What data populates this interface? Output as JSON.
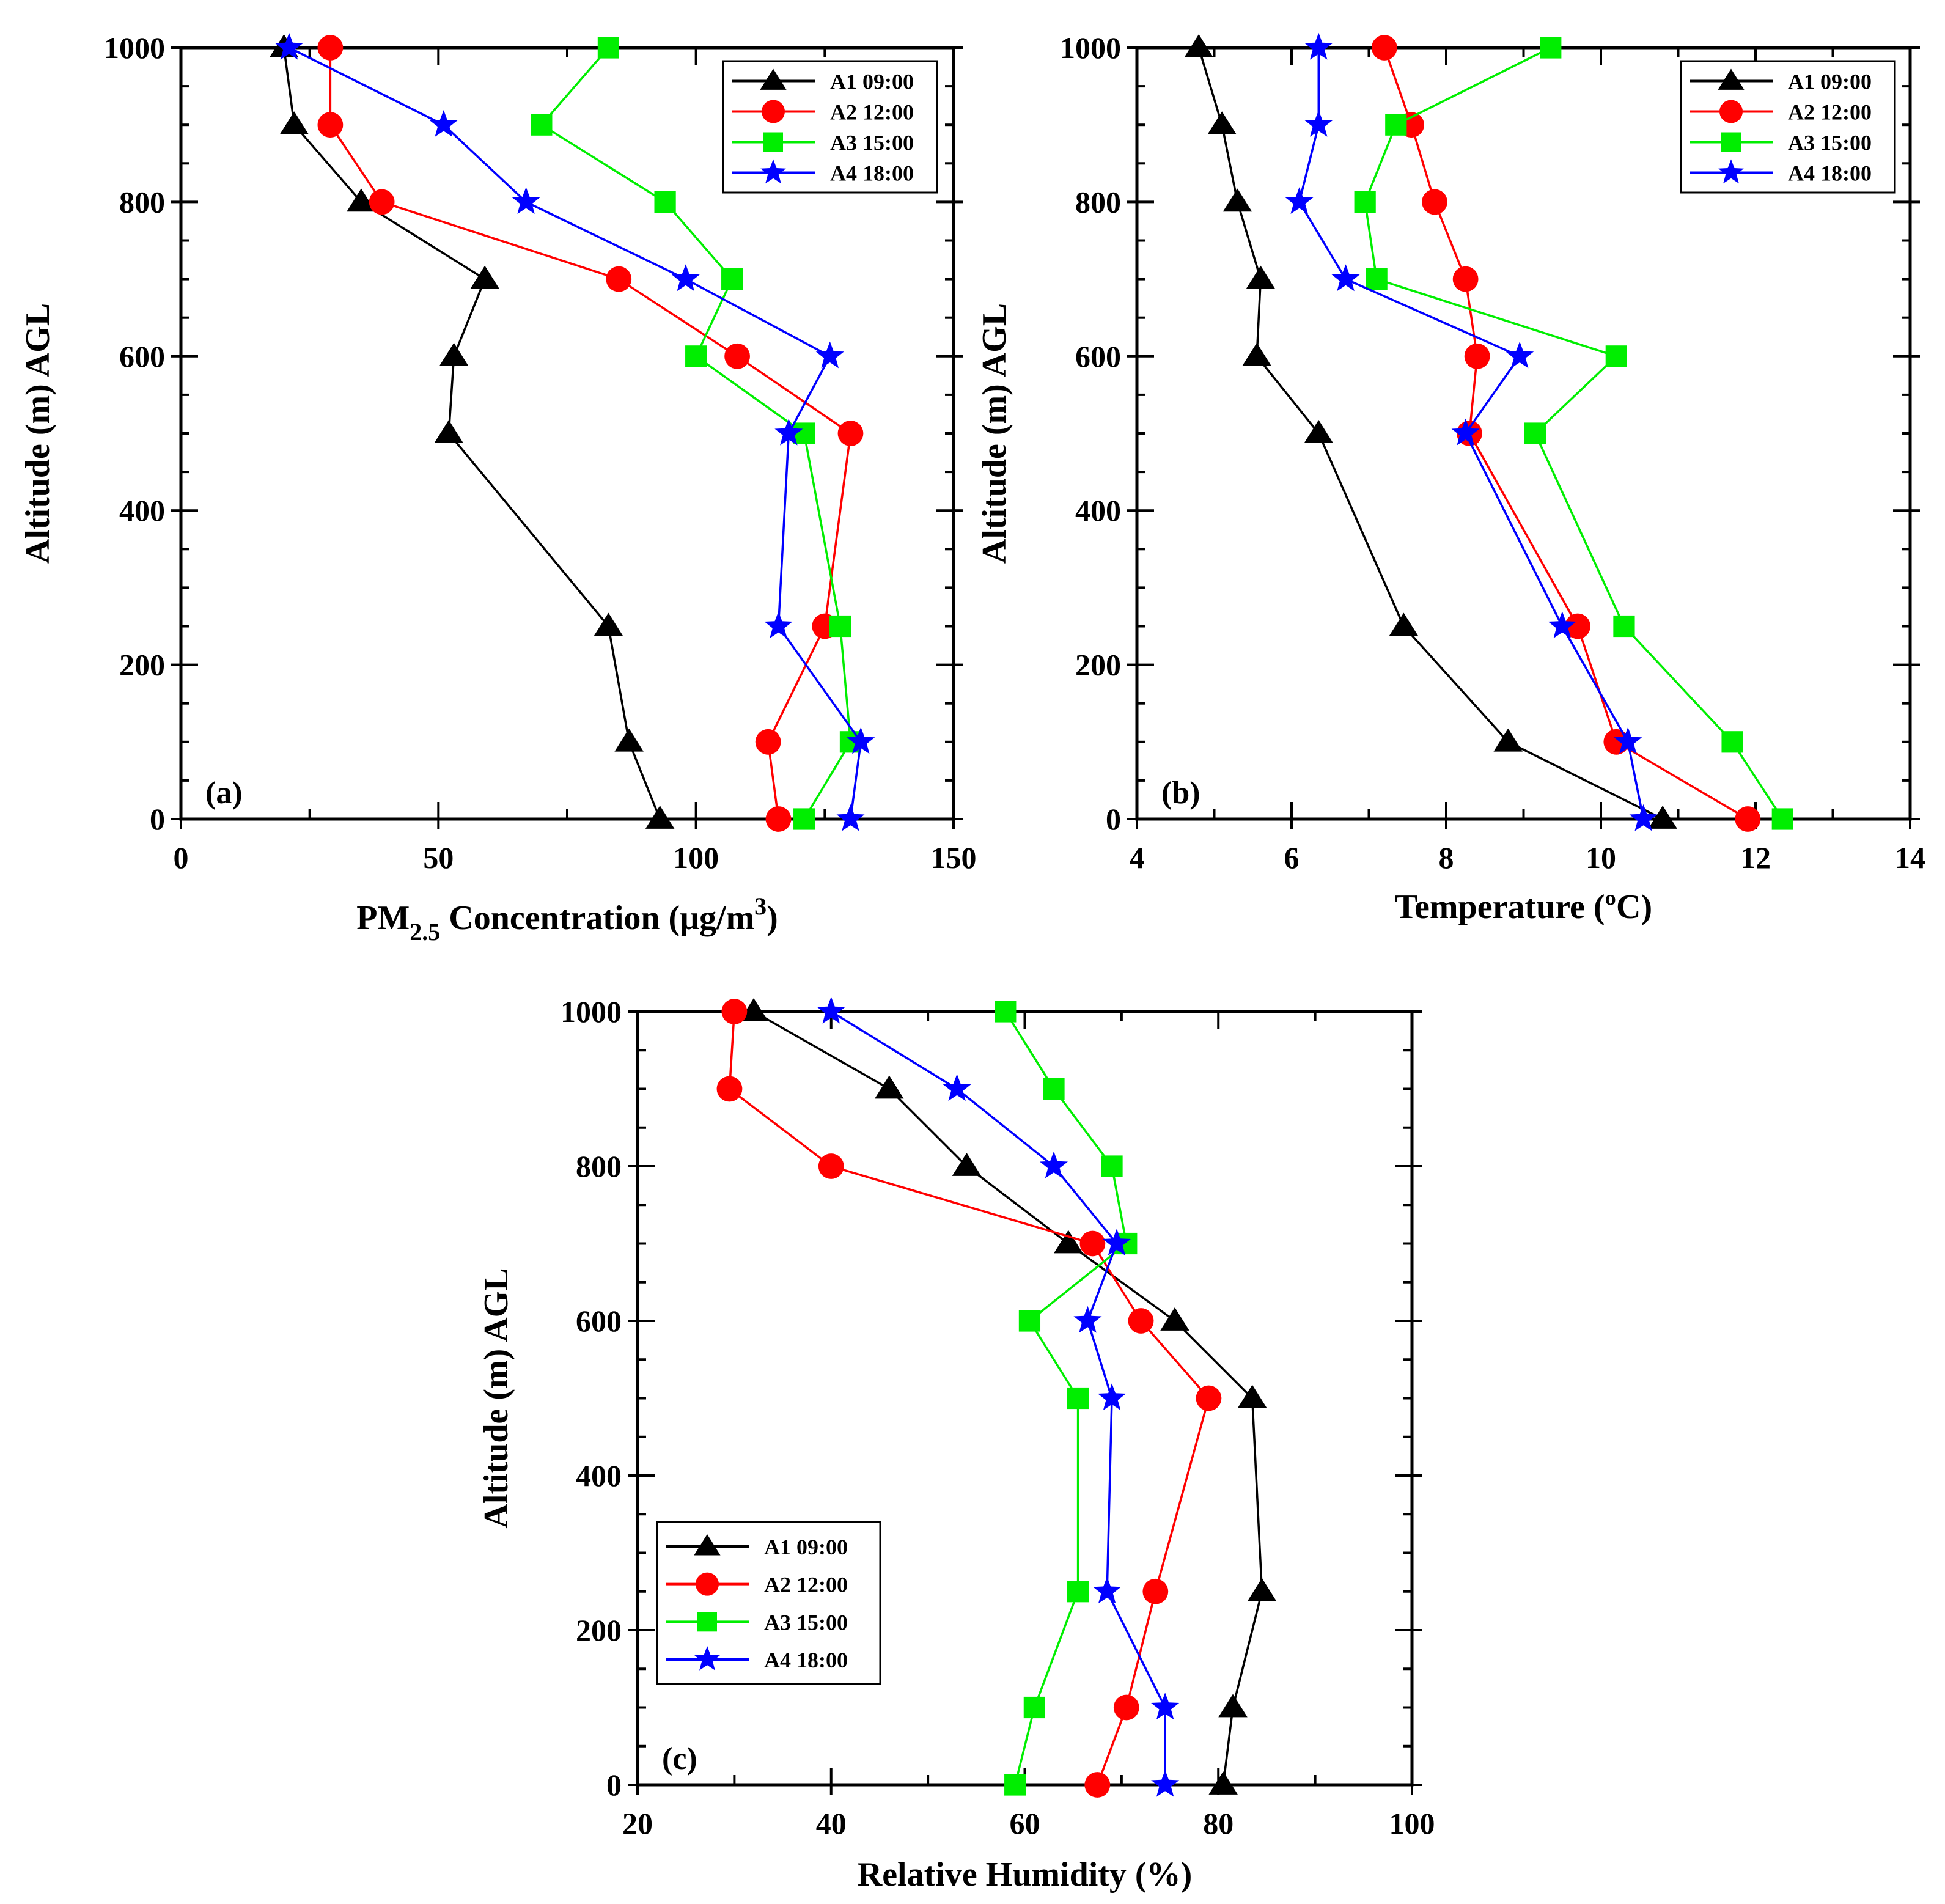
{
  "chart_data": [
    {
      "type": "line",
      "panel_label": "(a)",
      "xlabel": "PM",
      "xlabel_sub": "2.5",
      "xlabel_rest": " Concentration (μg/m",
      "xlabel_sup": "3",
      "xlabel_end": ")",
      "ylabel": "Altitude (m) AGL",
      "xlim": [
        0,
        150
      ],
      "ylim": [
        0,
        1000
      ],
      "xticks": [
        "0",
        "50",
        "100",
        "150"
      ],
      "yticks": [
        "0",
        "200",
        "400",
        "600",
        "800",
        "1000"
      ],
      "legend_position": "top-right",
      "altitudes": [
        0,
        100,
        250,
        500,
        600,
        700,
        800,
        900,
        1000
      ],
      "series": [
        {
          "name": "A1 09:00",
          "color": "#000000",
          "marker": "triangle",
          "values": [
            93,
            87,
            83,
            52,
            53,
            59,
            35,
            22,
            20
          ]
        },
        {
          "name": "A2 12:00",
          "color": "#ff0000",
          "marker": "circle",
          "values": [
            116,
            114,
            125,
            130,
            108,
            85,
            39,
            29,
            29
          ]
        },
        {
          "name": "A3 15:00",
          "color": "#00ee00",
          "marker": "square",
          "values": [
            121,
            130,
            128,
            121,
            100,
            107,
            94,
            70,
            83
          ]
        },
        {
          "name": "A4 18:00",
          "color": "#0000ff",
          "marker": "star",
          "values": [
            130,
            132,
            116,
            118,
            126,
            98,
            67,
            51,
            21
          ]
        }
      ]
    },
    {
      "type": "line",
      "panel_label": "(b)",
      "xlabel": "Temperature (ºC)",
      "ylabel": "Altitude (m) AGL",
      "xlim": [
        4,
        14
      ],
      "ylim": [
        0,
        1000
      ],
      "xticks": [
        "4",
        "6",
        "8",
        "10",
        "12",
        "14"
      ],
      "yticks": [
        "0",
        "200",
        "400",
        "600",
        "800",
        "1000"
      ],
      "legend_position": "top-right",
      "altitudes": [
        0,
        100,
        250,
        500,
        600,
        700,
        800,
        900,
        1000
      ],
      "series": [
        {
          "name": "A1 09:00",
          "color": "#000000",
          "marker": "triangle",
          "values": [
            10.8,
            8.8,
            7.45,
            6.35,
            5.55,
            5.6,
            5.3,
            5.1,
            4.8
          ]
        },
        {
          "name": "A2 12:00",
          "color": "#ff0000",
          "marker": "circle",
          "values": [
            11.9,
            10.2,
            9.7,
            8.3,
            8.4,
            8.25,
            7.85,
            7.55,
            7.2
          ]
        },
        {
          "name": "A3 15:00",
          "color": "#00ee00",
          "marker": "square",
          "values": [
            12.35,
            11.7,
            10.3,
            9.15,
            10.2,
            7.1,
            6.95,
            7.35,
            9.35
          ]
        },
        {
          "name": "A4 18:00",
          "color": "#0000ff",
          "marker": "star",
          "values": [
            10.55,
            10.35,
            9.5,
            8.25,
            8.95,
            6.7,
            6.1,
            6.35,
            6.35
          ]
        }
      ]
    },
    {
      "type": "line",
      "panel_label": "(c)",
      "xlabel": "Relative Humidity (%)",
      "ylabel": "Altitude (m) AGL",
      "xlim": [
        20,
        100
      ],
      "ylim": [
        0,
        1000
      ],
      "xticks": [
        "20",
        "40",
        "60",
        "80",
        "100"
      ],
      "yticks": [
        "0",
        "200",
        "400",
        "600",
        "800",
        "1000"
      ],
      "legend_position": "bottom-left",
      "altitudes": [
        0,
        100,
        250,
        500,
        600,
        700,
        800,
        900,
        1000
      ],
      "series": [
        {
          "name": "A1 09:00",
          "color": "#000000",
          "marker": "triangle",
          "values": [
            80.5,
            81.5,
            84.5,
            83.5,
            75.5,
            64.5,
            54,
            46,
            32
          ]
        },
        {
          "name": "A2 12:00",
          "color": "#ff0000",
          "marker": "circle",
          "values": [
            67.5,
            70.5,
            73.5,
            79,
            72,
            67,
            40,
            29.5,
            30
          ]
        },
        {
          "name": "A3 15:00",
          "color": "#00ee00",
          "marker": "square",
          "values": [
            59,
            61,
            65.5,
            65.5,
            60.5,
            70.5,
            69,
            63,
            58
          ]
        },
        {
          "name": "A4 18:00",
          "color": "#0000ff",
          "marker": "star",
          "values": [
            74.5,
            74.5,
            68.5,
            69,
            66.5,
            69.5,
            63,
            53,
            40
          ]
        }
      ]
    }
  ]
}
